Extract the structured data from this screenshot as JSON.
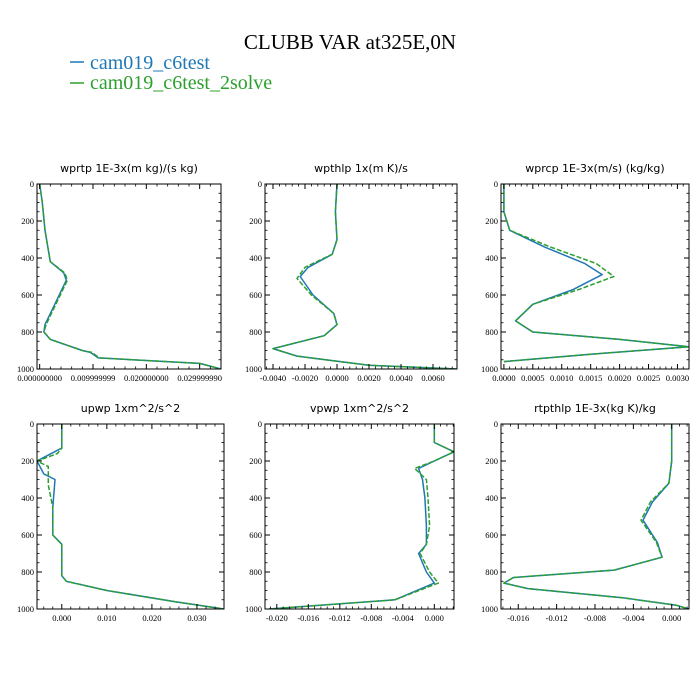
{
  "figure": {
    "title": "CLUBB VAR at325E,0N",
    "legend": [
      {
        "name": "cam019_c6test",
        "color": "#1f77b4"
      },
      {
        "name": "cam019_c6test_2solve",
        "color": "#2ca02c"
      }
    ]
  },
  "chart_data": [
    {
      "type": "line",
      "title": "wprtp  1E-3x(m kg)/(s kg)",
      "xlim": [
        -0.0005,
        0.034
      ],
      "ylim": [
        1000,
        0
      ],
      "xticks": [
        0.0,
        0.01,
        0.02,
        0.03
      ],
      "xtick_labels": [
        "0.000000000",
        "0.009999999",
        "0.020000000",
        "0.029999990"
      ],
      "yticks": [
        0,
        200,
        400,
        600,
        800,
        1000
      ],
      "series": [
        {
          "name": "cam019_c6test",
          "x": [
            0.0,
            0.0005,
            0.001,
            0.002,
            0.0045,
            0.005,
            0.003,
            0.001,
            0.0008,
            0.002,
            0.008,
            0.0095,
            0.011,
            0.03,
            0.034
          ],
          "y": [
            0,
            100,
            250,
            420,
            480,
            520,
            640,
            760,
            800,
            840,
            900,
            910,
            940,
            970,
            1000
          ]
        },
        {
          "name": "cam019_c6test_2solve",
          "x": [
            0.0,
            0.0005,
            0.001,
            0.002,
            0.0047,
            0.0052,
            0.0032,
            0.0012,
            0.0008,
            0.002,
            0.008,
            0.0098,
            0.0112,
            0.03,
            0.034
          ],
          "y": [
            0,
            100,
            250,
            420,
            480,
            520,
            640,
            760,
            800,
            840,
            900,
            910,
            940,
            970,
            1000
          ]
        }
      ]
    },
    {
      "type": "line",
      "title": "wpthlp  1x(m K)/s",
      "xlim": [
        -0.0045,
        0.0075
      ],
      "ylim": [
        1000,
        0
      ],
      "xticks": [
        -0.004,
        -0.002,
        0.0,
        0.002,
        0.004,
        0.006
      ],
      "xtick_labels": [
        "-0.0040",
        "-0.0020",
        "0.0000",
        "0.0020",
        "0.0040",
        "0.0060"
      ],
      "yticks": [
        0,
        200,
        400,
        600,
        800,
        1000
      ],
      "series": [
        {
          "name": "cam019_c6test",
          "x": [
            0.0,
            -0.0001,
            0.0,
            -0.0003,
            -0.0018,
            -0.0023,
            -0.0015,
            -0.0002,
            0.0,
            -0.0008,
            -0.004,
            -0.0025,
            0.002,
            0.0075
          ],
          "y": [
            0,
            150,
            300,
            380,
            450,
            500,
            600,
            700,
            760,
            820,
            890,
            930,
            980,
            1000
          ]
        },
        {
          "name": "cam019_c6test_2solve",
          "x": [
            0.0,
            -0.0001,
            0.0,
            -0.0003,
            -0.002,
            -0.0025,
            -0.0016,
            -0.0002,
            0.0,
            -0.0008,
            -0.004,
            -0.0025,
            0.002,
            0.0075
          ],
          "y": [
            0,
            150,
            300,
            380,
            450,
            510,
            600,
            700,
            760,
            820,
            890,
            930,
            980,
            1000
          ]
        }
      ]
    },
    {
      "type": "line",
      "title": "wprcp  1E-3x(m/s) (kg/kg)",
      "xlim": [
        -5e-05,
        0.0032
      ],
      "ylim": [
        1000,
        0
      ],
      "xticks": [
        0.0,
        0.0005,
        0.001,
        0.0015,
        0.002,
        0.0025,
        0.003
      ],
      "xtick_labels": [
        "0.0000",
        "0.0005",
        "0.0010",
        "0.0015",
        "0.0020",
        "0.0025",
        "0.0030"
      ],
      "yticks": [
        0,
        200,
        400,
        600,
        800,
        1000
      ],
      "series": [
        {
          "name": "cam019_c6test",
          "x": [
            0.0,
            0.0,
            0.0001,
            0.0007,
            0.0014,
            0.0017,
            0.0012,
            0.0005,
            0.0002,
            0.0005,
            0.002,
            0.0032,
            0.0015,
            0.0
          ],
          "y": [
            0,
            150,
            250,
            340,
            430,
            490,
            570,
            650,
            740,
            800,
            840,
            880,
            920,
            960
          ]
        },
        {
          "name": "cam019_c6test_2solve",
          "x": [
            0.0,
            0.0,
            0.0001,
            0.0008,
            0.0016,
            0.0019,
            0.0013,
            0.0005,
            0.0002,
            0.0005,
            0.002,
            0.0032,
            0.0015,
            0.0
          ],
          "y": [
            0,
            150,
            250,
            340,
            430,
            500,
            570,
            650,
            740,
            800,
            840,
            880,
            920,
            960
          ]
        }
      ]
    },
    {
      "type": "line",
      "title": "upwp  1xm^2/s^2",
      "xlim": [
        -0.0055,
        0.036
      ],
      "ylim": [
        1000,
        0
      ],
      "xticks": [
        0.0,
        0.01,
        0.02,
        0.03
      ],
      "xtick_labels": [
        "0.000",
        "0.010",
        "0.020",
        "0.030"
      ],
      "yticks": [
        0,
        200,
        400,
        600,
        800,
        1000
      ],
      "series": [
        {
          "name": "cam019_c6test",
          "x": [
            0.0,
            0.0,
            -0.002,
            -0.0055,
            -0.004,
            -0.0015,
            -0.002,
            -0.002,
            0.0,
            0.0,
            0.0,
            0.001,
            0.01,
            0.025,
            0.036
          ],
          "y": [
            0,
            130,
            155,
            200,
            270,
            300,
            450,
            600,
            650,
            700,
            820,
            850,
            900,
            960,
            1000
          ]
        },
        {
          "name": "cam019_c6test_2solve",
          "x": [
            0.0,
            0.0,
            -0.001,
            -0.0055,
            -0.003,
            -0.003,
            -0.002,
            -0.002,
            0.0,
            0.0,
            0.0,
            0.001,
            0.01,
            0.025,
            0.036
          ],
          "y": [
            0,
            130,
            160,
            200,
            230,
            330,
            450,
            600,
            650,
            700,
            820,
            850,
            900,
            960,
            1000
          ]
        }
      ]
    },
    {
      "type": "line",
      "title": "vpwp  1xm^2/s^2",
      "xlim": [
        -0.0215,
        0.0025
      ],
      "ylim": [
        1000,
        0
      ],
      "xticks": [
        -0.02,
        -0.016,
        -0.012,
        -0.008,
        -0.004,
        0.0
      ],
      "xtick_labels": [
        "-0.020",
        "-0.016",
        "-0.012",
        "-0.008",
        "-0.004",
        "0.000"
      ],
      "yticks": [
        0,
        200,
        400,
        600,
        800,
        1000
      ],
      "series": [
        {
          "name": "cam019_c6test",
          "x": [
            0.0,
            0.0,
            0.0025,
            0.0,
            -0.002,
            -0.0015,
            -0.0012,
            -0.001,
            -0.001,
            -0.002,
            -0.001,
            0.0,
            -0.005,
            -0.021
          ],
          "y": [
            0,
            100,
            150,
            200,
            240,
            300,
            400,
            550,
            650,
            700,
            800,
            860,
            950,
            1000
          ]
        },
        {
          "name": "cam019_c6test_2solve",
          "x": [
            0.0,
            0.0,
            0.0025,
            0.0,
            -0.0025,
            -0.001,
            -0.0008,
            -0.0006,
            -0.001,
            -0.0018,
            -0.0006,
            0.0005,
            -0.005,
            -0.021
          ],
          "y": [
            0,
            100,
            150,
            200,
            240,
            300,
            400,
            550,
            650,
            700,
            800,
            860,
            950,
            1000
          ]
        }
      ]
    },
    {
      "type": "line",
      "title": "rtpthlp  1E-3x(kg K)/kg",
      "xlim": [
        -0.0178,
        0.0018
      ],
      "ylim": [
        1000,
        0
      ],
      "xticks": [
        -0.016,
        -0.012,
        -0.008,
        -0.004,
        0.0
      ],
      "xtick_labels": [
        "-0.016",
        "-0.012",
        "-0.008",
        "-0.004",
        "0.000"
      ],
      "yticks": [
        0,
        200,
        400,
        600,
        800,
        1000
      ],
      "series": [
        {
          "name": "cam019_c6test",
          "x": [
            0.0,
            0.0,
            -0.0003,
            -0.002,
            -0.003,
            -0.0015,
            -0.001,
            -0.006,
            -0.0165,
            -0.0175,
            -0.015,
            -0.005,
            0.0005,
            0.0018
          ],
          "y": [
            0,
            200,
            320,
            420,
            520,
            640,
            720,
            790,
            830,
            860,
            890,
            940,
            980,
            1000
          ]
        },
        {
          "name": "cam019_c6test_2solve",
          "x": [
            0.0,
            0.0,
            -0.0003,
            -0.0022,
            -0.0032,
            -0.0016,
            -0.001,
            -0.006,
            -0.0165,
            -0.0175,
            -0.015,
            -0.005,
            0.0005,
            0.0018
          ],
          "y": [
            0,
            200,
            320,
            420,
            520,
            640,
            720,
            790,
            830,
            860,
            890,
            940,
            980,
            1000
          ]
        }
      ]
    }
  ]
}
